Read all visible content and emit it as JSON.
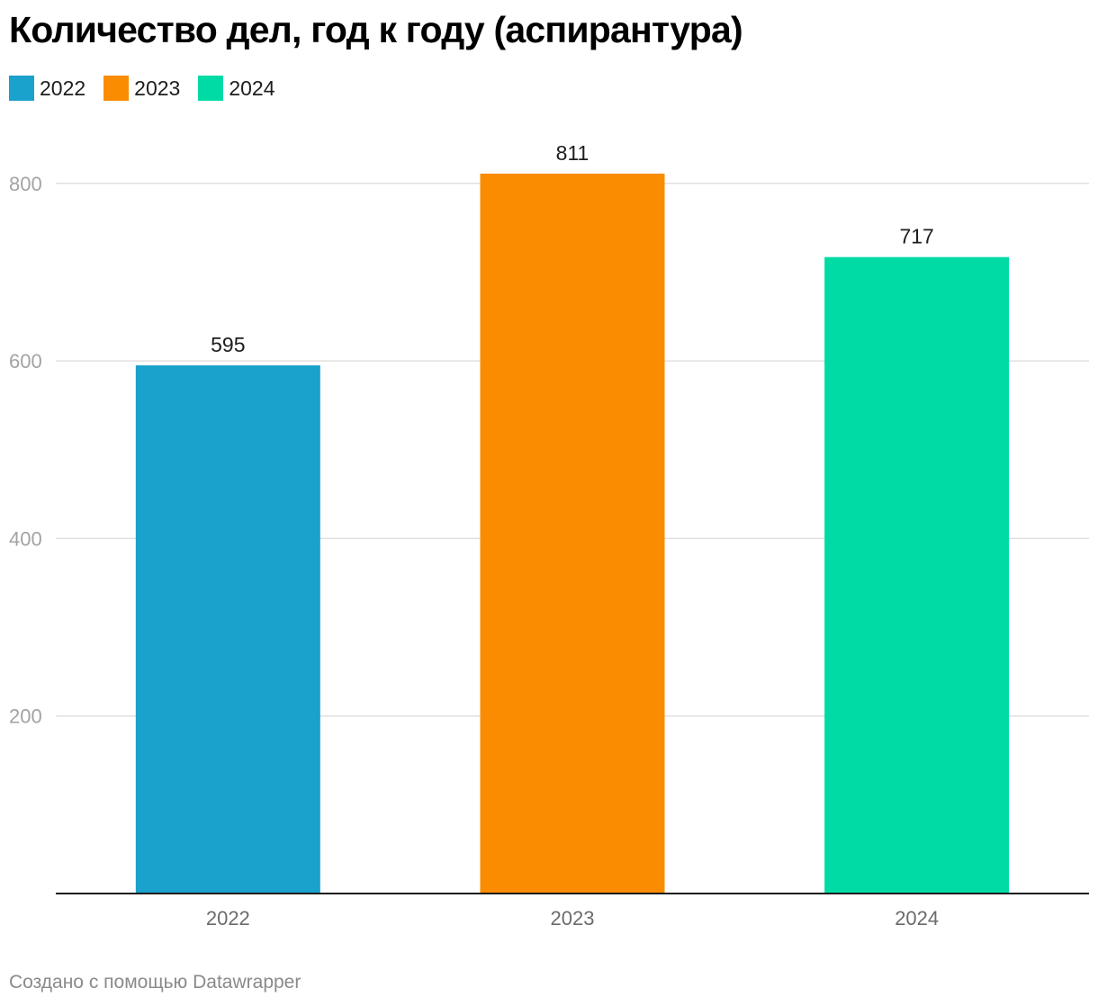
{
  "title": "Количество дел, год к году (аспирантура)",
  "footer": "Создано с помощью Datawrapper",
  "chart_data": {
    "type": "bar",
    "title": "Количество дел, год к году (аспирантура)",
    "xlabel": "",
    "ylabel": "",
    "categories": [
      "2022",
      "2023",
      "2024"
    ],
    "values": [
      595,
      811,
      717
    ],
    "colors": [
      "#1aa1cc",
      "#f98c00",
      "#00dba6"
    ],
    "legend": [
      {
        "label": "2022",
        "color": "#1aa1cc"
      },
      {
        "label": "2023",
        "color": "#f98c00"
      },
      {
        "label": "2024",
        "color": "#00dba6"
      }
    ],
    "legend_position": "top-left",
    "ylim": [
      0,
      811
    ],
    "yticks": [
      200,
      400,
      600,
      800
    ],
    "ytick_labels": [
      "200",
      "400",
      "600",
      "800"
    ],
    "grid": true
  }
}
